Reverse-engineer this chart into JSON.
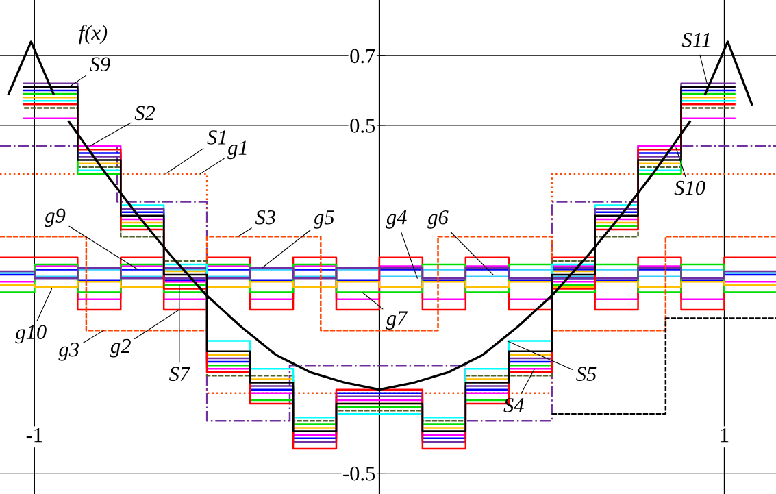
{
  "chart_data": {
    "type": "step",
    "xlim": [
      -1.1,
      1.15
    ],
    "ylim": [
      -0.56,
      0.86
    ],
    "xticks": [
      -1,
      {
        "value": 0,
        "label": null
      },
      1
    ],
    "yticks": [
      -0.5,
      0.5,
      0.7
    ],
    "grid": true,
    "series": [
      {
        "color": "#0000ff",
        "line_style": "solid",
        "x": [
          -1.1,
          -1,
          -0.875,
          -0.75,
          -0.625,
          -0.5,
          -0.375,
          -0.25,
          -0.125,
          0,
          0.125,
          0.25,
          0.375,
          0.5,
          0.625,
          0.75,
          0.875,
          1,
          1.15
        ],
        "values": [
          0.07,
          0.085,
          0.055,
          0.085,
          0.055,
          0.085,
          0.055,
          0.085,
          0.055,
          0.085,
          0.055,
          0.085,
          0.055,
          0.085,
          0.055,
          0.085,
          0.055,
          0.07,
          0.07
        ]
      },
      {
        "color": "#ff00ff",
        "line_style": "solid",
        "x": [
          -1.1,
          -1,
          -0.875,
          -0.75,
          -0.625,
          -0.5,
          -0.375,
          -0.25,
          -0.125,
          0,
          0.125,
          0.25,
          0.375,
          0.5,
          0.625,
          0.75,
          0.875,
          1,
          1.15
        ],
        "values": [
          0.05,
          0.095,
          0.0,
          0.095,
          0.0,
          0.095,
          0.0,
          0.095,
          0.0,
          0.095,
          0.0,
          0.095,
          0.0,
          0.095,
          0.0,
          0.095,
          0.0,
          0.05,
          0.05
        ]
      },
      {
        "color": "#33ccff",
        "line_style": "solid",
        "x": [
          -1.1,
          -1,
          -0.875,
          -0.75,
          -0.625,
          -0.5,
          -0.375,
          -0.25,
          -0.125,
          0,
          0.125,
          0.25,
          0.375,
          0.5,
          0.625,
          0.75,
          0.875,
          1,
          1.15
        ],
        "values": [
          0.075,
          0.065,
          0.085,
          0.065,
          0.085,
          0.065,
          0.085,
          0.065,
          0.085,
          0.065,
          0.085,
          0.065,
          0.085,
          0.065,
          0.085,
          0.065,
          0.085,
          0.075,
          0.075
        ]
      },
      {
        "color": "#ff0000",
        "line_style": "solid",
        "x": [
          -1.1,
          -1,
          -0.875,
          -0.75,
          -0.625,
          -0.5,
          -0.375,
          -0.25,
          -0.125,
          0,
          0.125,
          0.25,
          0.375,
          0.5,
          0.625,
          0.75,
          0.875,
          1,
          1.15
        ],
        "values": [
          0.12,
          0.12,
          -0.03,
          0.12,
          -0.03,
          0.12,
          -0.03,
          0.12,
          -0.03,
          0.12,
          -0.03,
          0.12,
          -0.03,
          0.12,
          -0.03,
          0.12,
          -0.03,
          0.12,
          0.12
        ]
      },
      {
        "color": "#00dd00",
        "line_style": "solid",
        "x": [
          -1.1,
          -1,
          -0.875,
          -0.75,
          -0.625,
          -0.5,
          -0.375,
          -0.25,
          -0.125,
          0,
          0.125,
          0.25,
          0.375,
          0.5,
          0.625,
          0.75,
          0.875,
          1,
          1.15
        ],
        "values": [
          0.02,
          0.1,
          0.02,
          0.1,
          0.02,
          0.1,
          0.02,
          0.1,
          0.02,
          0.02,
          0.1,
          0.02,
          0.1,
          0.02,
          0.1,
          0.02,
          0.1,
          0.02,
          0.02
        ]
      },
      {
        "color": "#ffc000",
        "line_style": "solid",
        "x": [
          -1.1,
          -1,
          -0.875,
          -0.75,
          -0.625,
          -0.5,
          -0.375,
          -0.25,
          -0.125,
          0,
          0.125,
          0.25,
          0.375,
          0.5,
          0.625,
          0.75,
          0.875,
          1,
          1.15
        ],
        "values": [
          0.04,
          0.035,
          0.05,
          0.035,
          0.05,
          0.035,
          0.05,
          0.035,
          0.05,
          0.035,
          0.05,
          0.035,
          0.05,
          0.035,
          0.05,
          0.035,
          0.05,
          0.04,
          0.04
        ]
      },
      {
        "color": "#7030a0",
        "line_style": "solid",
        "x": [
          -1.1,
          -1,
          -0.875,
          -0.75,
          -0.625,
          -0.5,
          -0.375,
          -0.25,
          -0.125,
          0,
          0.125,
          0.25,
          0.375,
          0.5,
          0.625,
          0.75,
          0.875,
          1,
          1.15
        ],
        "values": [
          0.08,
          0.06,
          0.09,
          0.06,
          0.09,
          0.06,
          0.09,
          0.06,
          0.09,
          0.09,
          0.06,
          0.09,
          0.06,
          0.09,
          0.06,
          0.09,
          0.06,
          0.08,
          0.08
        ]
      },
      {
        "color": "#ff4500",
        "line_style": "dotted",
        "x": [
          -1.1,
          -0.5,
          0.5,
          1.15
        ],
        "values": [
          0.36,
          -0.27,
          0.36,
          0.36
        ]
      },
      {
        "color": "#7030a0",
        "line_style": "dashdot",
        "x": [
          -1.1,
          -0.76,
          -0.5,
          -0.26,
          0.25,
          0.5,
          0.75,
          1.15
        ],
        "values": [
          0.44,
          0.28,
          -0.35,
          -0.19,
          -0.35,
          0.28,
          0.44,
          0.44
        ]
      },
      {
        "color": "#ff4500",
        "line_style": "dashed",
        "x": [
          -1.1,
          -0.85,
          -0.5,
          -0.17,
          0.17,
          0.5,
          0.83,
          1.15
        ],
        "values": [
          0.18,
          -0.09,
          0.18,
          -0.09,
          0.18,
          -0.09,
          0.18,
          0.18
        ]
      },
      {
        "color": "#000000",
        "line_style": "dashed",
        "x": [
          0.5,
          0.83,
          1.15
        ],
        "values": [
          -0.33,
          -0.055,
          -0.055
        ]
      },
      {
        "color": "#4f6228",
        "line_style": "dashed",
        "x": [
          -1.03,
          -0.875,
          -0.75,
          -0.625,
          -0.5,
          -0.375,
          -0.25,
          -0.125,
          0,
          0.125,
          0.25,
          0.375,
          0.5,
          0.625,
          0.75,
          0.875,
          1.03
        ],
        "values": [
          0.55,
          0.38,
          0.18,
          0.11,
          -0.22,
          -0.22,
          -0.35,
          -0.32,
          -0.32,
          -0.35,
          -0.22,
          -0.22,
          0.11,
          0.18,
          0.38,
          0.55,
          0.55
        ]
      },
      {
        "color": "#0000ff",
        "line_style": "solid",
        "x": [
          -1.03,
          -0.875,
          -0.75,
          -0.625,
          -0.5,
          -0.375,
          -0.25,
          -0.125,
          0,
          0.125,
          0.25,
          0.375,
          0.5,
          0.625,
          0.75,
          0.875,
          1.03
        ],
        "values": [
          0.6,
          0.42,
          0.25,
          0.06,
          -0.18,
          -0.26,
          -0.4,
          -0.27,
          -0.27,
          -0.4,
          -0.26,
          -0.18,
          0.06,
          0.25,
          0.42,
          0.6,
          0.6
        ]
      },
      {
        "color": "#ffc000",
        "line_style": "solid",
        "x": [
          -1.03,
          -0.875,
          -0.75,
          -0.625,
          -0.5,
          -0.375,
          -0.25,
          -0.125,
          0,
          0.125,
          0.25,
          0.375,
          0.5,
          0.625,
          0.75,
          0.875,
          1.03
        ],
        "values": [
          0.58,
          0.39,
          0.22,
          0.08,
          -0.16,
          -0.23,
          -0.37,
          -0.3,
          -0.3,
          -0.37,
          -0.23,
          -0.16,
          0.08,
          0.22,
          0.39,
          0.58,
          0.58
        ]
      },
      {
        "color": "#00ffff",
        "line_style": "solid",
        "x": [
          -1.03,
          -0.875,
          -0.75,
          -0.625,
          -0.5,
          -0.375,
          -0.25,
          -0.125,
          0,
          0.125,
          0.25,
          0.375,
          0.5,
          0.625,
          0.75,
          0.875,
          1.03
        ],
        "values": [
          0.57,
          0.37,
          0.27,
          0.1,
          -0.12,
          -0.2,
          -0.34,
          -0.33,
          -0.33,
          -0.34,
          -0.2,
          -0.12,
          0.1,
          0.27,
          0.37,
          0.57,
          0.57
        ]
      },
      {
        "color": "#ff00ff",
        "line_style": "solid",
        "x": [
          -1.03,
          -0.875,
          -0.75,
          -0.625,
          -0.5,
          -0.375,
          -0.25,
          -0.125,
          0,
          0.125,
          0.25,
          0.375,
          0.5,
          0.625,
          0.75,
          0.875,
          1.03
        ],
        "values": [
          0.52,
          0.44,
          0.23,
          0.05,
          -0.2,
          -0.27,
          -0.39,
          -0.29,
          -0.29,
          -0.39,
          -0.27,
          -0.2,
          0.05,
          0.23,
          0.44,
          0.52,
          0.52
        ]
      },
      {
        "color": "#00dd00",
        "line_style": "solid",
        "x": [
          -1.03,
          -0.875,
          -0.75,
          -0.625,
          -0.5,
          -0.375,
          -0.25,
          -0.125,
          0,
          0.125,
          0.25,
          0.375,
          0.5,
          0.625,
          0.75,
          0.875,
          1.03
        ],
        "values": [
          0.59,
          0.36,
          0.21,
          0.04,
          -0.19,
          -0.29,
          -0.36,
          -0.31,
          -0.31,
          -0.36,
          -0.29,
          -0.19,
          0.04,
          0.21,
          0.36,
          0.59,
          0.59
        ]
      },
      {
        "color": "#7030a0",
        "line_style": "solid",
        "x": [
          -1.03,
          -0.875,
          -0.75,
          -0.625,
          -0.5,
          -0.375,
          -0.25,
          -0.125,
          0,
          0.125,
          0.25,
          0.375,
          0.5,
          0.625,
          0.75,
          0.875,
          1.03
        ],
        "values": [
          0.62,
          0.41,
          0.26,
          0.06,
          -0.17,
          -0.25,
          -0.41,
          -0.28,
          -0.28,
          -0.41,
          -0.25,
          -0.17,
          0.06,
          0.26,
          0.41,
          0.62,
          0.62
        ]
      },
      {
        "color": "#ff0000",
        "line_style": "solid",
        "x": [
          -1.03,
          -0.875,
          -0.75,
          -0.625,
          -0.5,
          -0.375,
          -0.25,
          -0.125,
          0,
          0.125,
          0.25,
          0.375,
          0.5,
          0.625,
          0.75,
          0.875,
          1.03
        ],
        "values": [
          0.56,
          0.43,
          0.2,
          0.03,
          -0.21,
          -0.3,
          -0.43,
          -0.26,
          -0.26,
          -0.43,
          -0.3,
          -0.21,
          0.03,
          0.2,
          0.43,
          0.56,
          0.56
        ]
      },
      {
        "color": "#000000",
        "line_style": "solid",
        "x": [
          -1.03,
          -0.875,
          -0.75,
          -0.625,
          -0.5,
          -0.375,
          -0.25,
          -0.125,
          0,
          0.125,
          0.25,
          0.375,
          0.5,
          0.625,
          0.75,
          0.875,
          1.03
        ],
        "values": [
          0.61,
          0.4,
          0.24,
          0.07,
          -0.15,
          -0.24,
          -0.38,
          -0.3,
          -0.3,
          -0.38,
          -0.24,
          -0.15,
          0.07,
          0.24,
          0.4,
          0.61,
          0.61
        ]
      },
      {
        "type": "line",
        "color": "#000000",
        "line_style": "solid",
        "x": [
          -0.9,
          -0.8,
          -0.7,
          -0.6,
          -0.5,
          -0.4,
          -0.3,
          -0.2,
          -0.1,
          0,
          0.1,
          0.2,
          0.3,
          0.4,
          0.5,
          0.6,
          0.7,
          0.8,
          0.9
        ],
        "values": [
          0.51,
          0.37,
          0.24,
          0.12,
          0.01,
          -0.08,
          -0.16,
          -0.21,
          -0.24,
          -0.26,
          -0.24,
          -0.21,
          -0.16,
          -0.08,
          0.01,
          0.12,
          0.24,
          0.37,
          0.51
        ]
      },
      {
        "type": "line",
        "color": "#000000",
        "line_style": "solid",
        "x": [
          -1.075,
          -1.01,
          -0.945
        ],
        "values": [
          0.59,
          0.74,
          0.59
        ]
      },
      {
        "type": "line",
        "color": "#000000",
        "line_style": "solid",
        "x": [
          0.945,
          1.01,
          1.08
        ],
        "values": [
          0.59,
          0.74,
          0.56
        ]
      }
    ],
    "annotations": [
      "f(x)",
      {
        "text": "S9",
        "x": -0.9,
        "y": 0.61
      },
      {
        "text": "S2",
        "x": -0.84,
        "y": 0.44
      },
      {
        "text": "S1",
        "x": -0.62,
        "y": 0.36
      },
      {
        "text": "g1",
        "x": -0.52,
        "y": 0.36
      },
      {
        "text": "S3",
        "x": -0.41,
        "y": 0.18
      },
      {
        "text": "g5",
        "x": -0.34,
        "y": 0.09
      },
      {
        "text": "g4",
        "x": 0.11,
        "y": 0.06
      },
      {
        "text": "g6",
        "x": 0.33,
        "y": 0.07
      },
      {
        "text": "g9",
        "x": -0.7,
        "y": 0.085
      },
      {
        "text": "g7",
        "x": -0.05,
        "y": 0.02
      },
      {
        "text": "g10",
        "x": -0.95,
        "y": 0.03
      },
      {
        "text": "g3",
        "x": -0.8,
        "y": -0.09
      },
      {
        "text": "g2",
        "x": -0.58,
        "y": -0.03
      },
      {
        "text": "S7",
        "x": -0.58,
        "y": 0.04
      },
      {
        "text": "S4",
        "x": 0.45,
        "y": -0.2
      },
      {
        "text": "S5",
        "x": 0.37,
        "y": -0.12
      },
      {
        "text": "S10",
        "x": 0.86,
        "y": 0.435
      },
      {
        "text": "S11",
        "x": 0.95,
        "y": 0.62
      }
    ]
  }
}
